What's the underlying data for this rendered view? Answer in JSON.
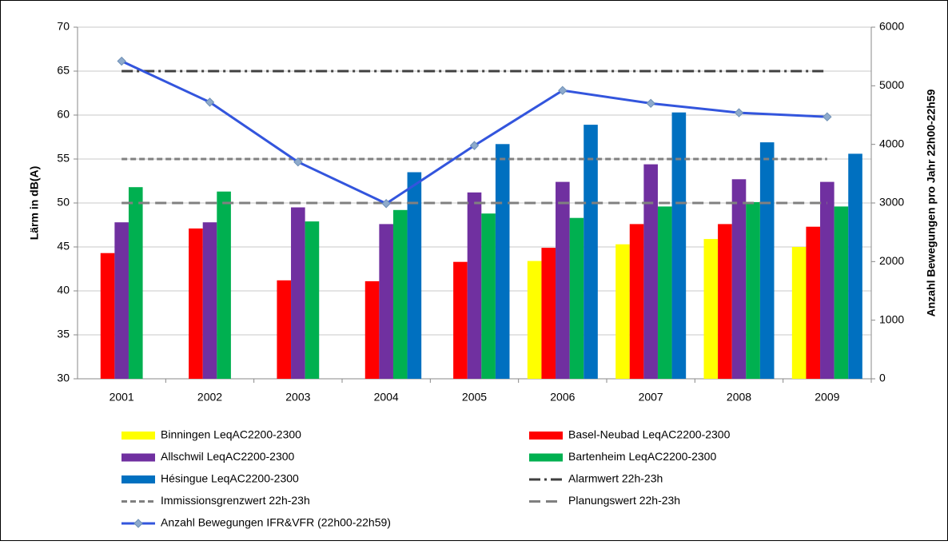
{
  "chart_data": {
    "type": "bar",
    "categories": [
      "2001",
      "2002",
      "2003",
      "2004",
      "2005",
      "2006",
      "2007",
      "2008",
      "2009"
    ],
    "ylabel": "Lärm in dB(A)",
    "y2label": "Anzahl Bewegungen pro Jahr 22h00-22h59",
    "ylim": [
      30,
      70
    ],
    "yticks": [
      30,
      35,
      40,
      45,
      50,
      55,
      60,
      65,
      70
    ],
    "y2lim": [
      0,
      6000
    ],
    "y2ticks": [
      0,
      1000,
      2000,
      3000,
      4000,
      5000,
      6000
    ],
    "grid": true,
    "legend": "bottom",
    "series": [
      {
        "name": "Binningen LeqAC2200-2300",
        "color": "#ffff00",
        "values": [
          null,
          null,
          null,
          null,
          null,
          43.4,
          45.3,
          45.9,
          45.0
        ]
      },
      {
        "name": "Basel-Neubad LeqAC2200-2300",
        "color": "#ff0000",
        "values": [
          44.3,
          47.1,
          41.2,
          41.1,
          43.3,
          44.9,
          47.6,
          47.6,
          47.3
        ]
      },
      {
        "name": "Allschwil LeqAC2200-2300",
        "color": "#7030a0",
        "values": [
          47.8,
          47.8,
          49.5,
          47.6,
          51.2,
          52.4,
          54.4,
          52.7,
          52.4
        ]
      },
      {
        "name": "Bartenheim LeqAC2200-2300",
        "color": "#00b050",
        "values": [
          51.8,
          51.3,
          47.9,
          49.2,
          48.8,
          48.3,
          49.6,
          50.1,
          49.6
        ]
      },
      {
        "name": "Hésingue LeqAC2200-2300",
        "color": "#0070c0",
        "values": [
          null,
          null,
          null,
          53.5,
          56.7,
          58.9,
          60.3,
          56.9,
          55.6
        ]
      }
    ],
    "reference_lines": [
      {
        "name": "Alarmwert 22h-23h",
        "value": 65,
        "color": "#404040",
        "dash": "dash-dot"
      },
      {
        "name": "Immissionsgrenzwert 22h-23h",
        "value": 55,
        "color": "#808080",
        "dash": "short-dash"
      },
      {
        "name": "Planungswert 22h-23h",
        "value": 50,
        "color": "#808080",
        "dash": "long-dash"
      }
    ],
    "line": {
      "name": "Anzahl Bewegungen IFR&VFR (22h00-22h59)",
      "color": "#3355dd",
      "marker": "diamond",
      "marker_color": "#8eaacc",
      "axis": "y2",
      "values": [
        5420,
        4720,
        3700,
        2990,
        3980,
        4920,
        4700,
        4540,
        4470
      ]
    }
  }
}
